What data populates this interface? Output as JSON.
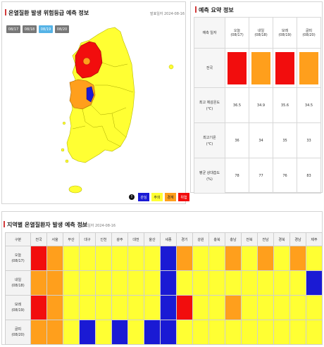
{
  "map_panel": {
    "title": "온열질환 발생 위험등급 예측 정보",
    "date": "발표일자 2024-08-16",
    "tabs": [
      {
        "label": "08/17",
        "active": false
      },
      {
        "label": "08/18",
        "active": false
      },
      {
        "label": "08/19",
        "active": true
      },
      {
        "label": "08/20",
        "active": false
      }
    ],
    "legend": {
      "info": "!",
      "items": [
        {
          "label": "관심",
          "color": "#1a1ad4",
          "text_color": "#ffffff"
        },
        {
          "label": "주의",
          "color": "#ffff33",
          "text_color": "#222222"
        },
        {
          "label": "경계",
          "color": "#ff9f1c",
          "text_color": "#222222"
        },
        {
          "label": "위험",
          "color": "#f20d0d",
          "text_color": "#ffffff"
        }
      ]
    }
  },
  "summary_panel": {
    "title": "예측 요약 정보",
    "header_label": "예측 일자",
    "days": [
      {
        "name": "오늘",
        "date": "(08/17)"
      },
      {
        "name": "내일",
        "date": "(08/18)"
      },
      {
        "name": "모레",
        "date": "(08/19)"
      },
      {
        "name": "글피",
        "date": "(08/20)"
      }
    ],
    "nation_label": "전국",
    "nation_levels": [
      "#f20d0d",
      "#ff9f1c",
      "#f20d0d",
      "#ff9f1c"
    ],
    "rows": [
      {
        "label1": "최고 체감온도",
        "label2": "(℃)",
        "values": [
          "36.5",
          "34.9",
          "35.6",
          "34.5"
        ]
      },
      {
        "label1": "최고기온",
        "label2": "(℃)",
        "values": [
          "36",
          "34",
          "35",
          "33"
        ]
      },
      {
        "label1": "평균 상대습도",
        "label2": "(%)",
        "values": [
          "78",
          "77",
          "76",
          "83"
        ]
      }
    ]
  },
  "region_panel": {
    "title": "지역별 온열질환자 발생 예측 정보",
    "date": "발표일자 2024-08-16",
    "corner": "구분",
    "regions": [
      "전국",
      "서울",
      "부산",
      "대구",
      "인천",
      "광주",
      "대전",
      "울산",
      "세종",
      "경기",
      "강원",
      "충북",
      "충남",
      "전북",
      "전남",
      "경북",
      "경남",
      "제주"
    ],
    "rows": [
      {
        "name": "오늘",
        "date": "(08/17)",
        "levels": [
          "R",
          "O",
          "Y",
          "Y",
          "Y",
          "Y",
          "Y",
          "Y",
          "B",
          "O",
          "Y",
          "Y",
          "O",
          "Y",
          "O",
          "Y",
          "O",
          "Y"
        ]
      },
      {
        "name": "내일",
        "date": "(08/18)",
        "levels": [
          "O",
          "O",
          "Y",
          "Y",
          "Y",
          "Y",
          "Y",
          "Y",
          "B",
          "Y",
          "Y",
          "Y",
          "Y",
          "Y",
          "Y",
          "Y",
          "Y",
          "B"
        ]
      },
      {
        "name": "모레",
        "date": "(08/19)",
        "levels": [
          "R",
          "O",
          "Y",
          "Y",
          "Y",
          "Y",
          "Y",
          "Y",
          "B",
          "R",
          "Y",
          "Y",
          "O",
          "Y",
          "Y",
          "Y",
          "Y",
          "Y"
        ]
      },
      {
        "name": "글피",
        "date": "(08/20)",
        "levels": [
          "O",
          "O",
          "Y",
          "B",
          "Y",
          "B",
          "Y",
          "B",
          "B",
          "Y",
          "Y",
          "Y",
          "Y",
          "Y",
          "Y",
          "Y",
          "Y",
          "Y"
        ]
      }
    ],
    "level_colors": {
      "R": "#f20d0d",
      "O": "#ff9f1c",
      "Y": "#ffff33",
      "B": "#1a1ad4"
    }
  }
}
